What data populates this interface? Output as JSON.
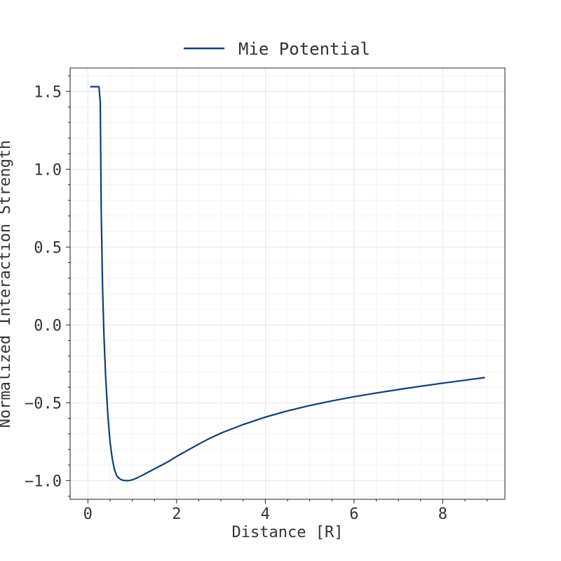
{
  "chart_data": {
    "type": "line",
    "title": "",
    "xlabel": "Distance [R]",
    "ylabel": "Normalized Interaction Strength",
    "xlim": [
      -0.4,
      9.4
    ],
    "ylim": [
      -1.12,
      1.65
    ],
    "xticks": [
      0,
      2,
      4,
      6,
      8
    ],
    "xtick_labels": [
      "0",
      "2",
      "4",
      "6",
      "8"
    ],
    "yticks": [
      -1.0,
      -0.5,
      0.0,
      0.5,
      1.0,
      1.5
    ],
    "ytick_labels": [
      "−1.0",
      "−0.5",
      "0.0",
      "0.5",
      "1.0",
      "1.5"
    ],
    "grid": true,
    "legend_position": "top",
    "series": [
      {
        "name": "Mie Potential",
        "color": "#0b3f7a",
        "x": [
          0.05,
          0.1,
          0.15,
          0.2,
          0.25,
          0.28,
          0.3,
          0.33,
          0.36,
          0.4,
          0.45,
          0.5,
          0.55,
          0.6,
          0.65,
          0.7,
          0.75,
          0.8,
          0.85,
          0.9,
          0.95,
          1.0,
          1.05,
          1.1,
          1.2,
          1.3,
          1.4,
          1.5,
          1.6,
          1.8,
          2.0,
          2.25,
          2.5,
          2.75,
          3.0,
          3.5,
          4.0,
          4.5,
          5.0,
          5.5,
          6.0,
          6.5,
          7.0,
          7.5,
          8.0,
          8.5,
          8.95
        ],
        "y": [
          1.53,
          1.53,
          1.53,
          1.53,
          1.53,
          1.43,
          0.75,
          0.25,
          -0.05,
          -0.33,
          -0.58,
          -0.75,
          -0.86,
          -0.93,
          -0.968,
          -0.985,
          -0.994,
          -0.998,
          -1.0,
          -1.0,
          -0.998,
          -0.995,
          -0.99,
          -0.984,
          -0.97,
          -0.955,
          -0.94,
          -0.925,
          -0.91,
          -0.88,
          -0.845,
          -0.805,
          -0.765,
          -0.728,
          -0.695,
          -0.64,
          -0.592,
          -0.552,
          -0.518,
          -0.488,
          -0.461,
          -0.437,
          -0.415,
          -0.394,
          -0.374,
          -0.355,
          -0.338
        ]
      }
    ]
  }
}
